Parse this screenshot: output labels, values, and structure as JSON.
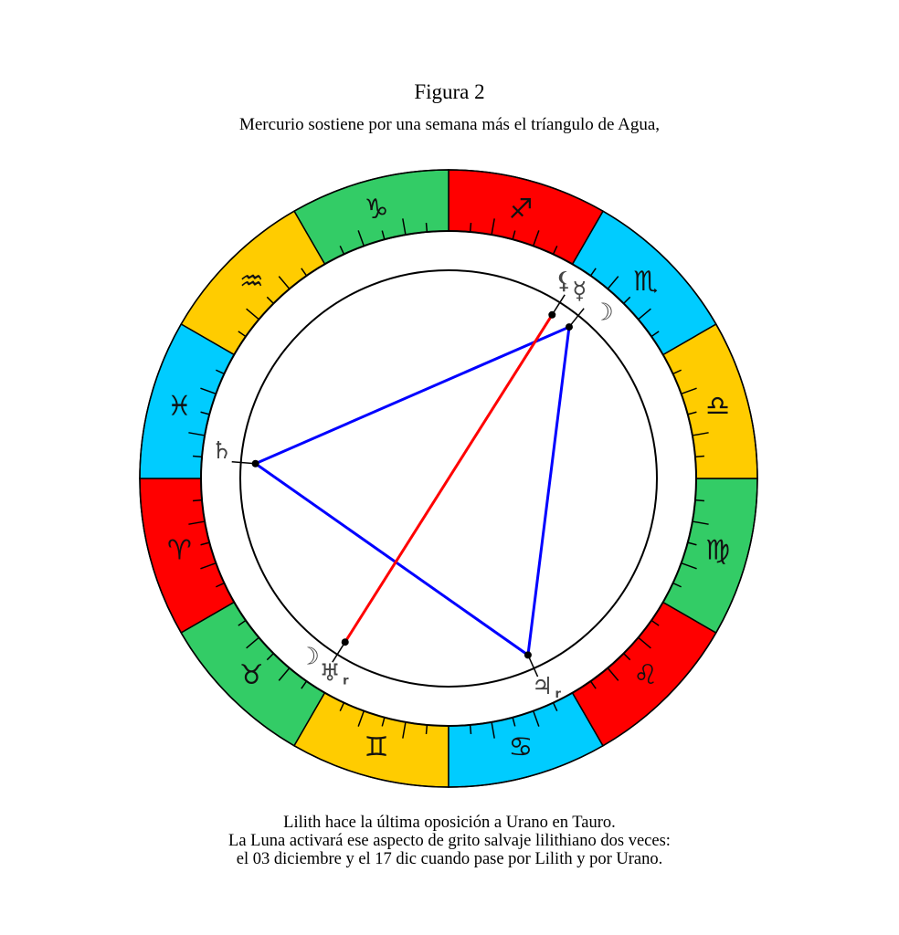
{
  "title": "Figura 2",
  "subtitle": "Mercurio sostiene por una semana más el tríangulo de Agua,",
  "caption": [
    "Lilith hace la última oposición a Urano en Tauro.",
    "La Luna activará ese aspecto de grito salvaje lilithiano dos veces:",
    "el 03 diciembre y el 17 dic cuando pase por Lilith y por Urano."
  ],
  "zodiac": [
    {
      "sign": "aries",
      "glyph": "♈",
      "color": "#FF0000"
    },
    {
      "sign": "taurus",
      "glyph": "♉",
      "color": "#33CC66"
    },
    {
      "sign": "gemini",
      "glyph": "♊",
      "color": "#FFCC00"
    },
    {
      "sign": "cancer",
      "glyph": "♋",
      "color": "#00CCFF"
    },
    {
      "sign": "leo",
      "glyph": "♌",
      "color": "#FF0000"
    },
    {
      "sign": "virgo",
      "glyph": "♍",
      "color": "#33CC66"
    },
    {
      "sign": "libra",
      "glyph": "♎",
      "color": "#FFCC00"
    },
    {
      "sign": "scorpio",
      "glyph": "♏",
      "color": "#00CCFF"
    },
    {
      "sign": "sagittarius",
      "glyph": "♐",
      "color": "#FF0000"
    },
    {
      "sign": "capricorn",
      "glyph": "♑",
      "color": "#33CC66"
    },
    {
      "sign": "aquarius",
      "glyph": "♒",
      "color": "#FFCC00"
    },
    {
      "sign": "pisces",
      "glyph": "♓",
      "color": "#00CCFF"
    }
  ],
  "bodies": [
    {
      "id": "saturn",
      "glyph": "♄",
      "longitude": 355.6,
      "retrograde": false,
      "marker": true
    },
    {
      "id": "lilith",
      "glyph": "⚸",
      "longitude": 237.7,
      "retrograde": false,
      "marker": true
    },
    {
      "id": "mercury",
      "glyph": "☿",
      "longitude": 231.5,
      "retrograde": false,
      "marker": true
    },
    {
      "id": "moon-dec-03",
      "glyph": "☽",
      "longitude": 227,
      "retrograde": false,
      "marker": false
    },
    {
      "id": "uranus",
      "glyph": "♅",
      "longitude": 57.7,
      "retrograde": true,
      "marker": true
    },
    {
      "id": "moon-dec-17",
      "glyph": "☽",
      "longitude": 52,
      "retrograde": false,
      "marker": false
    },
    {
      "id": "jupiter",
      "glyph": "♃",
      "longitude": 114.2,
      "retrograde": true,
      "marker": true
    }
  ],
  "retrograde_label": "r",
  "aspects": [
    {
      "from": "saturn",
      "to": "mercury",
      "type": "trine",
      "color": "#0000FF"
    },
    {
      "from": "mercury",
      "to": "jupiter",
      "type": "trine",
      "color": "#0000FF"
    },
    {
      "from": "jupiter",
      "to": "saturn",
      "type": "trine",
      "color": "#0000FF"
    },
    {
      "from": "lilith",
      "to": "uranus",
      "type": "opposition",
      "color": "#FF0000"
    }
  ]
}
